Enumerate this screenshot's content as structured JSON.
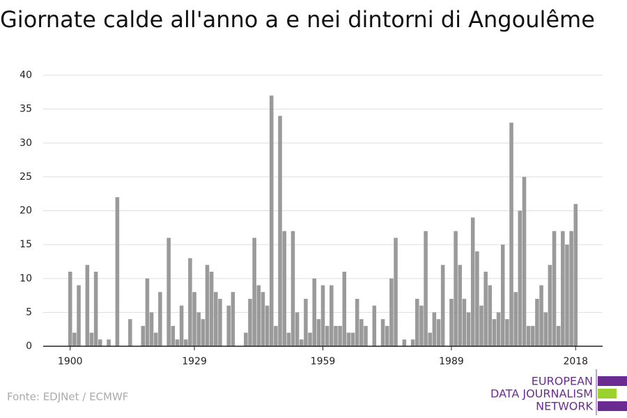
{
  "chart_data": {
    "type": "bar",
    "title": "Giornate calde all'anno a e nei dintorni di Angoulême",
    "source": "Fonte: EDJNet / ECMWF",
    "logo": [
      "EUROPEAN",
      "DATA JOURNALISM",
      "NETWORK"
    ],
    "color": "#9a9a9a",
    "x": [
      1900,
      1901,
      1902,
      1903,
      1904,
      1905,
      1906,
      1907,
      1908,
      1909,
      1910,
      1911,
      1912,
      1913,
      1914,
      1915,
      1916,
      1917,
      1918,
      1919,
      1920,
      1921,
      1922,
      1923,
      1924,
      1925,
      1926,
      1927,
      1928,
      1929,
      1930,
      1931,
      1932,
      1933,
      1934,
      1935,
      1936,
      1937,
      1938,
      1939,
      1940,
      1941,
      1942,
      1943,
      1944,
      1945,
      1946,
      1947,
      1948,
      1949,
      1950,
      1951,
      1952,
      1953,
      1954,
      1955,
      1956,
      1957,
      1958,
      1959,
      1960,
      1961,
      1962,
      1963,
      1964,
      1965,
      1966,
      1967,
      1968,
      1969,
      1970,
      1971,
      1972,
      1973,
      1974,
      1975,
      1976,
      1977,
      1978,
      1979,
      1980,
      1981,
      1982,
      1983,
      1984,
      1985,
      1986,
      1987,
      1988,
      1989,
      1990,
      1991,
      1992,
      1993,
      1994,
      1995,
      1996,
      1997,
      1998,
      1999,
      2000,
      2001,
      2002,
      2003,
      2004,
      2005,
      2006,
      2007,
      2008,
      2009,
      2010,
      2011,
      2012,
      2013,
      2014,
      2015,
      2016,
      2017,
      2018
    ],
    "values": [
      11,
      2,
      9,
      0,
      12,
      2,
      11,
      1,
      0,
      1,
      0,
      22,
      0,
      0,
      4,
      0,
      0,
      3,
      10,
      5,
      2,
      8,
      0,
      16,
      3,
      1,
      6,
      1,
      13,
      8,
      5,
      4,
      12,
      11,
      8,
      7,
      0,
      6,
      8,
      0,
      0,
      2,
      7,
      16,
      9,
      8,
      6,
      37,
      3,
      34,
      17,
      2,
      17,
      5,
      1,
      7,
      2,
      10,
      4,
      9,
      3,
      9,
      3,
      3,
      11,
      2,
      2,
      7,
      4,
      3,
      0,
      6,
      0,
      4,
      3,
      10,
      16,
      0,
      1,
      0,
      1,
      7,
      6,
      17,
      2,
      5,
      4,
      12,
      0,
      7,
      17,
      12,
      7,
      5,
      19,
      14,
      6,
      11,
      9,
      4,
      5,
      15,
      4,
      33,
      8,
      20,
      25,
      3,
      3,
      7,
      9,
      5,
      12,
      17,
      3,
      17,
      15,
      17,
      21
    ],
    "xlim": [
      1893.7,
      2024.3
    ],
    "xticks": [
      1900,
      1929,
      1959,
      1989,
      2018
    ],
    "ylim": [
      0,
      40
    ],
    "yticks": [
      0,
      5,
      10,
      15,
      20,
      25,
      30,
      35,
      40
    ],
    "grid": true
  }
}
